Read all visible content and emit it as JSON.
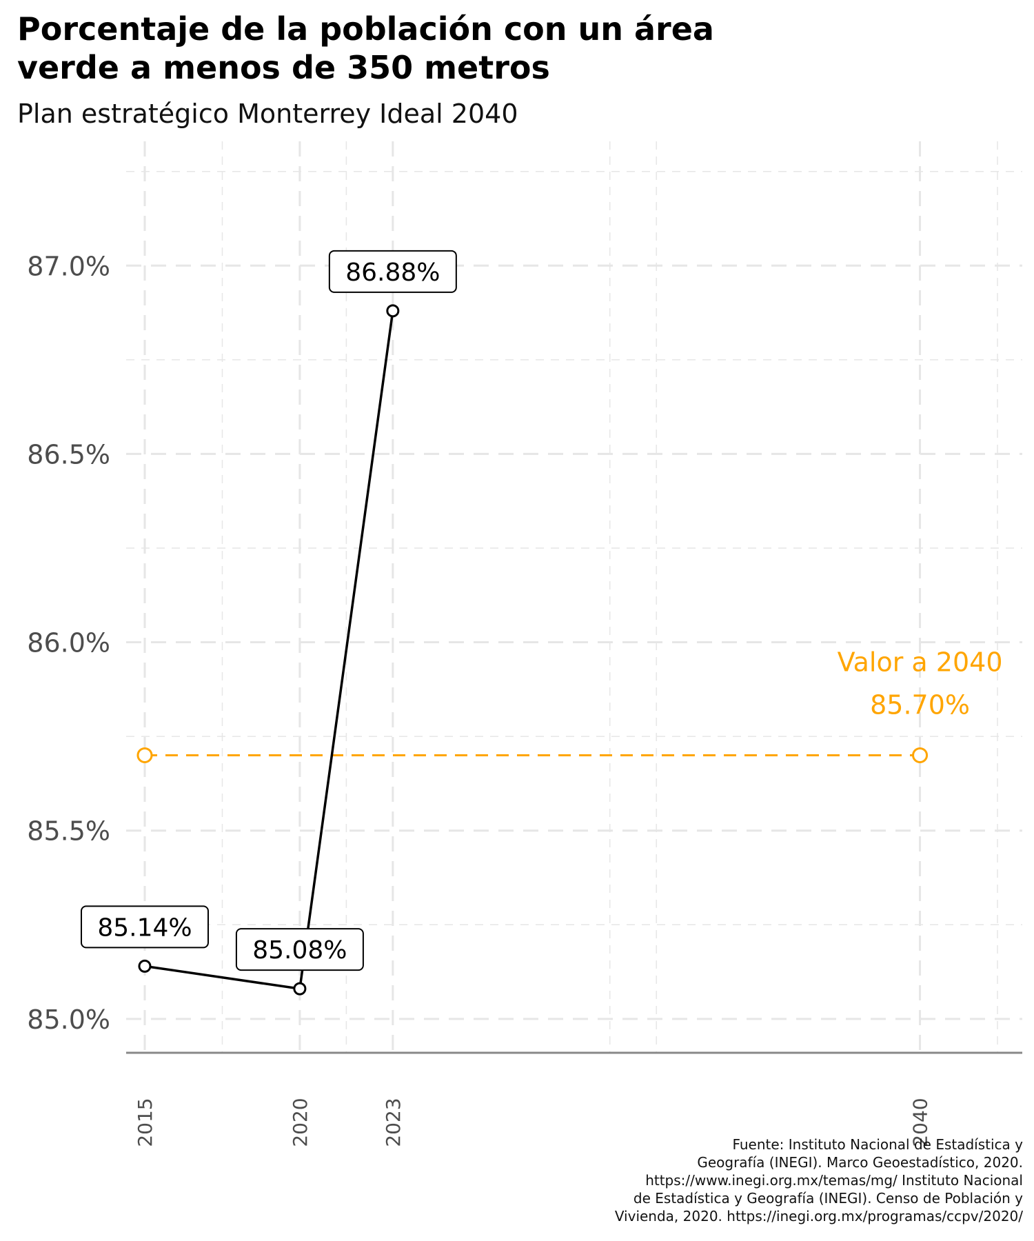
{
  "title_lines": [
    "Porcentaje de la población con un área",
    "verde a menos de 350 metros"
  ],
  "subtitle": "Plan estratégico Monterrey Ideal 2040",
  "caption_lines": [
    "Fuente: Instituto Nacional de Estadística y",
    "Geografía (INEGI). Marco Geoestadístico, 2020.",
    "https://www.inegi.org.mx/temas/mg/ Instituto Nacional",
    "de Estadística y Geografía (INEGI). Censo de Población y",
    "Vivienda, 2020. https://inegi.org.mx/programas/ccpv/2020/"
  ],
  "colors": {
    "series": "#000000",
    "target": "#FFA500",
    "grid": "#e6e6e6",
    "axis": "#888888",
    "ticks": "#4d4d4d"
  },
  "chart_data": {
    "type": "line",
    "xlim": [
      2014.4,
      2043.3
    ],
    "ylim": [
      84.91,
      87.33
    ],
    "x_ticks": [
      2015,
      2020,
      2023,
      2040
    ],
    "x_tick_labels": [
      "2015",
      "2020",
      "2023",
      "2040"
    ],
    "y_ticks": [
      85.0,
      85.5,
      86.0,
      86.5,
      87.0
    ],
    "y_tick_labels": [
      "85.0%",
      "85.5%",
      "86.0%",
      "86.5%",
      "87.0%"
    ],
    "grid": true,
    "series": [
      {
        "x": [
          2015,
          2020,
          2023
        ],
        "y": [
          85.14,
          85.08,
          86.88
        ],
        "labels": [
          "85.14%",
          "85.08%",
          "86.88%"
        ]
      }
    ],
    "target": {
      "x": [
        2015,
        2040
      ],
      "y": [
        85.7,
        85.7
      ],
      "label_line1": "Valor a 2040",
      "label_line2": "85.70%"
    }
  }
}
